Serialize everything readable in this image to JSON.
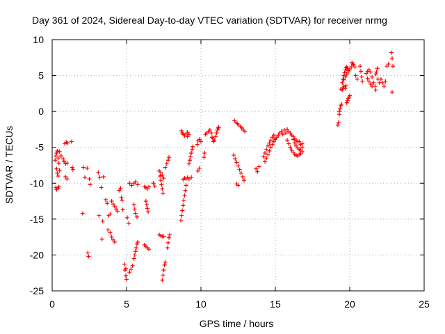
{
  "chart_data": {
    "type": "scatter",
    "title": "Day 361 of 2024, Sidereal Day-to-day VTEC variation (SDTVAR) for receiver nrmg",
    "xlabel": "GPS time / hours",
    "ylabel": "SDTVAR / TECUs",
    "xlim": [
      0,
      25
    ],
    "ylim": [
      -25,
      10
    ],
    "xticks": [
      0,
      5,
      10,
      15,
      20,
      25
    ],
    "yticks": [
      -25,
      -20,
      -15,
      -10,
      -5,
      0,
      5,
      10
    ],
    "grid": true,
    "marker": "+",
    "color": "#ff0000",
    "points": [
      [
        0.2,
        -6.8
      ],
      [
        0.25,
        -6.2
      ],
      [
        0.3,
        -5.8
      ],
      [
        0.35,
        -5.5
      ],
      [
        0.4,
        -6.5
      ],
      [
        0.45,
        -7.2
      ],
      [
        0.3,
        -8.0
      ],
      [
        0.35,
        -8.6
      ],
      [
        0.4,
        -9.0
      ],
      [
        0.5,
        -8.2
      ],
      [
        0.25,
        -10.6
      ],
      [
        0.3,
        -10.9
      ],
      [
        0.4,
        -10.7
      ],
      [
        0.45,
        -10.5
      ],
      [
        0.5,
        -5.6
      ],
      [
        0.6,
        -6.2
      ],
      [
        0.75,
        -6.6
      ],
      [
        0.8,
        -7.0
      ],
      [
        0.9,
        -7.3
      ],
      [
        1.0,
        -7.2
      ],
      [
        0.85,
        -4.5
      ],
      [
        0.95,
        -4.3
      ],
      [
        1.05,
        -4.4
      ],
      [
        0.9,
        -9.1
      ],
      [
        1.0,
        -9.4
      ],
      [
        1.3,
        -4.2
      ],
      [
        1.35,
        -7.8
      ],
      [
        1.4,
        -8.1
      ],
      [
        2.05,
        -14.2
      ],
      [
        2.1,
        -7.8
      ],
      [
        2.2,
        -9.2
      ],
      [
        2.35,
        -7.9
      ],
      [
        2.4,
        -19.7
      ],
      [
        2.45,
        -20.2
      ],
      [
        2.5,
        -9.4
      ],
      [
        2.55,
        -10.2
      ],
      [
        3.1,
        -8.5
      ],
      [
        3.15,
        -14.5
      ],
      [
        3.2,
        -9.2
      ],
      [
        3.3,
        -10.6
      ],
      [
        3.35,
        -17.8
      ],
      [
        3.4,
        -15.3
      ],
      [
        3.45,
        -9.1
      ],
      [
        3.6,
        -12.3
      ],
      [
        3.7,
        -12.8
      ],
      [
        3.75,
        -16.5
      ],
      [
        3.8,
        -14.5
      ],
      [
        3.9,
        -14.3
      ],
      [
        3.9,
        -16.9
      ],
      [
        4.0,
        -17.5
      ],
      [
        4.1,
        -17.9
      ],
      [
        4.2,
        -18.2
      ],
      [
        4.2,
        -13.2
      ],
      [
        4.3,
        -13.6
      ],
      [
        4.4,
        -13.9
      ],
      [
        4.0,
        -12.5
      ],
      [
        4.1,
        -12.9
      ],
      [
        4.5,
        -11.0
      ],
      [
        4.6,
        -10.7
      ],
      [
        4.65,
        -12.0
      ],
      [
        4.7,
        -12.4
      ],
      [
        4.75,
        -13.7
      ],
      [
        4.85,
        -21.3
      ],
      [
        4.9,
        -22.1
      ],
      [
        4.95,
        -22.9
      ],
      [
        5.0,
        -23.4
      ],
      [
        4.95,
        -21.9
      ],
      [
        5.05,
        -14.8
      ],
      [
        5.15,
        -15.6
      ],
      [
        5.2,
        -10.0
      ],
      [
        5.35,
        -10.3
      ],
      [
        5.2,
        -22.4
      ],
      [
        5.3,
        -22.0
      ],
      [
        5.4,
        -21.5
      ],
      [
        5.5,
        -13.0
      ],
      [
        5.55,
        -13.6
      ],
      [
        5.6,
        -14.2
      ],
      [
        5.7,
        -14.7
      ],
      [
        5.5,
        -10.0
      ],
      [
        5.6,
        -9.8
      ],
      [
        5.75,
        -10.2
      ],
      [
        5.5,
        -20.5
      ],
      [
        5.55,
        -20.0
      ],
      [
        5.6,
        -19.5
      ],
      [
        5.65,
        -19.0
      ],
      [
        5.7,
        -18.5
      ],
      [
        5.75,
        -18.2
      ],
      [
        6.2,
        -10.5
      ],
      [
        6.3,
        -10.6
      ],
      [
        6.4,
        -10.8
      ],
      [
        6.5,
        -10.5
      ],
      [
        6.3,
        -12.5
      ],
      [
        6.35,
        -13.0
      ],
      [
        6.4,
        -13.5
      ],
      [
        6.45,
        -14.0
      ],
      [
        6.2,
        -18.6
      ],
      [
        6.3,
        -18.8
      ],
      [
        6.4,
        -19.0
      ],
      [
        6.5,
        -19.2
      ],
      [
        6.8,
        -10.0
      ],
      [
        6.9,
        -10.4
      ],
      [
        7.2,
        -8.3
      ],
      [
        7.25,
        -9.0
      ],
      [
        7.3,
        -9.6
      ],
      [
        7.35,
        -10.2
      ],
      [
        7.4,
        -10.8
      ],
      [
        7.45,
        -11.4
      ],
      [
        7.3,
        -8.5
      ],
      [
        7.4,
        -8.9
      ],
      [
        7.5,
        -9.3
      ],
      [
        7.2,
        -17.2
      ],
      [
        7.3,
        -17.3
      ],
      [
        7.4,
        -17.4
      ],
      [
        7.5,
        -17.4
      ],
      [
        7.4,
        -23.5
      ],
      [
        7.45,
        -22.8
      ],
      [
        7.5,
        -22.1
      ],
      [
        7.55,
        -21.4
      ],
      [
        7.6,
        -21.0
      ],
      [
        7.6,
        -7.8
      ],
      [
        7.7,
        -7.3
      ],
      [
        7.8,
        -6.8
      ],
      [
        7.85,
        -6.4
      ],
      [
        7.75,
        -19.0
      ],
      [
        7.8,
        -18.3
      ],
      [
        7.85,
        -17.6
      ],
      [
        7.9,
        -17.2
      ],
      [
        8.65,
        -15.2
      ],
      [
        8.7,
        -14.5
      ],
      [
        8.75,
        -13.8
      ],
      [
        8.8,
        -13.1
      ],
      [
        8.85,
        -12.4
      ],
      [
        8.9,
        -11.7
      ],
      [
        8.95,
        -11.0
      ],
      [
        9.0,
        -10.3
      ],
      [
        8.7,
        -2.7
      ],
      [
        8.75,
        -3.0
      ],
      [
        8.8,
        -3.2
      ],
      [
        8.9,
        -3.4
      ],
      [
        9.0,
        -3.1
      ],
      [
        9.1,
        -2.9
      ],
      [
        9.2,
        -3.2
      ],
      [
        9.1,
        -3.5
      ],
      [
        8.8,
        -9.5
      ],
      [
        8.9,
        -9.3
      ],
      [
        9.0,
        -9.4
      ],
      [
        9.1,
        -9.2
      ],
      [
        9.2,
        -9.4
      ],
      [
        9.35,
        -9.2
      ],
      [
        9.2,
        -7.3
      ],
      [
        9.25,
        -6.8
      ],
      [
        9.3,
        -6.3
      ],
      [
        9.35,
        -5.8
      ],
      [
        9.4,
        -5.3
      ],
      [
        9.45,
        -4.9
      ],
      [
        9.75,
        -4.6
      ],
      [
        9.8,
        -4.1
      ],
      [
        9.9,
        -3.9
      ],
      [
        10.0,
        -4.2
      ],
      [
        9.8,
        -8.3
      ],
      [
        9.9,
        -7.9
      ],
      [
        10.2,
        -6.4
      ],
      [
        10.25,
        -5.8
      ],
      [
        10.3,
        -3.2
      ],
      [
        10.4,
        -3.0
      ],
      [
        10.5,
        -2.8
      ],
      [
        10.6,
        -2.6
      ],
      [
        10.7,
        -3.0
      ],
      [
        10.75,
        -3.6
      ],
      [
        10.8,
        -3.8
      ],
      [
        10.85,
        -4.2
      ],
      [
        10.9,
        -4.0
      ],
      [
        11.0,
        -3.5
      ],
      [
        11.05,
        -3.0
      ],
      [
        11.1,
        -2.6
      ],
      [
        11.15,
        -2.3
      ],
      [
        11.2,
        -2.2
      ],
      [
        12.2,
        -6.1
      ],
      [
        12.3,
        -6.6
      ],
      [
        12.4,
        -7.1
      ],
      [
        12.5,
        -7.6
      ],
      [
        12.6,
        -8.1
      ],
      [
        12.7,
        -8.6
      ],
      [
        12.8,
        -9.1
      ],
      [
        12.9,
        -9.6
      ],
      [
        12.25,
        -1.3
      ],
      [
        12.35,
        -1.5
      ],
      [
        12.45,
        -1.7
      ],
      [
        12.55,
        -1.9
      ],
      [
        12.65,
        -2.1
      ],
      [
        12.75,
        -2.3
      ],
      [
        12.85,
        -2.6
      ],
      [
        12.95,
        -2.8
      ],
      [
        12.4,
        -10.1
      ],
      [
        12.5,
        -10.3
      ],
      [
        13.7,
        -8.0
      ],
      [
        13.8,
        -8.4
      ],
      [
        13.9,
        -7.7
      ],
      [
        14.2,
        -6.3
      ],
      [
        14.3,
        -5.8
      ],
      [
        14.4,
        -5.3
      ],
      [
        14.5,
        -4.8
      ],
      [
        14.6,
        -4.4
      ],
      [
        14.7,
        -4.0
      ],
      [
        14.8,
        -3.6
      ],
      [
        14.9,
        -3.3
      ],
      [
        14.3,
        -7.0
      ],
      [
        14.4,
        -6.5
      ],
      [
        14.5,
        -6.0
      ],
      [
        14.6,
        -5.5
      ],
      [
        14.7,
        -5.0
      ],
      [
        14.8,
        -4.6
      ],
      [
        14.9,
        -4.2
      ],
      [
        15.0,
        -3.8
      ],
      [
        15.0,
        -3.9
      ],
      [
        15.1,
        -3.6
      ],
      [
        15.2,
        -3.3
      ],
      [
        15.3,
        -3.0
      ],
      [
        15.4,
        -2.8
      ],
      [
        15.5,
        -3.2
      ],
      [
        15.6,
        -2.6
      ],
      [
        15.7,
        -3.0
      ],
      [
        15.8,
        -2.5
      ],
      [
        15.9,
        -2.8
      ],
      [
        16.0,
        -3.0
      ],
      [
        16.1,
        -3.3
      ],
      [
        16.2,
        -3.5
      ],
      [
        16.3,
        -3.8
      ],
      [
        16.4,
        -4.0
      ],
      [
        16.5,
        -4.2
      ],
      [
        15.8,
        -4.0
      ],
      [
        15.9,
        -4.5
      ],
      [
        16.0,
        -5.0
      ],
      [
        16.1,
        -5.4
      ],
      [
        16.2,
        -5.7
      ],
      [
        16.3,
        -6.0
      ],
      [
        16.4,
        -6.1
      ],
      [
        16.5,
        -6.2
      ],
      [
        16.2,
        -3.9
      ],
      [
        16.3,
        -4.4
      ],
      [
        16.4,
        -4.8
      ],
      [
        16.5,
        -5.1
      ],
      [
        16.6,
        -5.3
      ],
      [
        16.7,
        -5.4
      ],
      [
        16.8,
        -5.0
      ],
      [
        16.8,
        -4.5
      ],
      [
        16.6,
        -6.0
      ],
      [
        16.7,
        -5.9
      ],
      [
        16.8,
        -5.6
      ],
      [
        16.6,
        -4.2
      ],
      [
        16.7,
        -4.6
      ],
      [
        19.2,
        -1.9
      ],
      [
        19.25,
        -1.5
      ],
      [
        19.3,
        0.0
      ],
      [
        19.35,
        0.4
      ],
      [
        19.4,
        0.8
      ],
      [
        19.45,
        1.0
      ],
      [
        19.3,
        -0.4
      ],
      [
        19.4,
        3.1
      ],
      [
        19.5,
        3.0
      ],
      [
        19.55,
        3.3
      ],
      [
        19.6,
        3.5
      ],
      [
        19.7,
        3.2
      ],
      [
        19.75,
        3.6
      ],
      [
        19.5,
        4.0
      ],
      [
        19.55,
        4.5
      ],
      [
        19.6,
        5.0
      ],
      [
        19.65,
        5.4
      ],
      [
        19.7,
        5.8
      ],
      [
        19.75,
        6.1
      ],
      [
        19.8,
        6.2
      ],
      [
        19.85,
        6.0
      ],
      [
        19.9,
        5.7
      ],
      [
        19.6,
        4.4
      ],
      [
        19.7,
        4.8
      ],
      [
        19.8,
        5.2
      ],
      [
        19.9,
        5.5
      ],
      [
        20.0,
        5.8
      ],
      [
        20.1,
        6.2
      ],
      [
        20.2,
        6.6
      ],
      [
        19.8,
        1.2
      ],
      [
        19.85,
        1.5
      ],
      [
        19.9,
        1.8
      ],
      [
        19.95,
        2.0
      ],
      [
        20.0,
        2.2
      ],
      [
        20.15,
        6.8
      ],
      [
        20.25,
        6.5
      ],
      [
        20.35,
        6.2
      ],
      [
        20.4,
        5.0
      ],
      [
        20.5,
        4.5
      ],
      [
        20.7,
        6.3
      ],
      [
        20.75,
        5.6
      ],
      [
        20.8,
        4.8
      ],
      [
        20.85,
        4.2
      ],
      [
        21.1,
        5.3
      ],
      [
        21.2,
        5.6
      ],
      [
        21.3,
        5.8
      ],
      [
        21.4,
        5.5
      ],
      [
        21.5,
        4.8
      ],
      [
        21.6,
        4.0
      ],
      [
        21.7,
        3.5
      ],
      [
        21.75,
        3.0
      ],
      [
        21.2,
        4.6
      ],
      [
        21.3,
        4.2
      ],
      [
        21.4,
        3.8
      ],
      [
        21.5,
        3.5
      ],
      [
        21.75,
        5.2
      ],
      [
        21.8,
        5.5
      ],
      [
        21.85,
        6.0
      ],
      [
        21.9,
        4.5
      ],
      [
        22.0,
        4.0
      ],
      [
        22.1,
        4.5
      ],
      [
        22.2,
        4.0
      ],
      [
        22.3,
        3.5
      ],
      [
        22.4,
        4.2
      ],
      [
        22.5,
        6.3
      ],
      [
        22.6,
        6.6
      ],
      [
        22.8,
        8.2
      ],
      [
        22.85,
        7.4
      ],
      [
        22.9,
        6.3
      ],
      [
        22.85,
        2.7
      ]
    ]
  }
}
